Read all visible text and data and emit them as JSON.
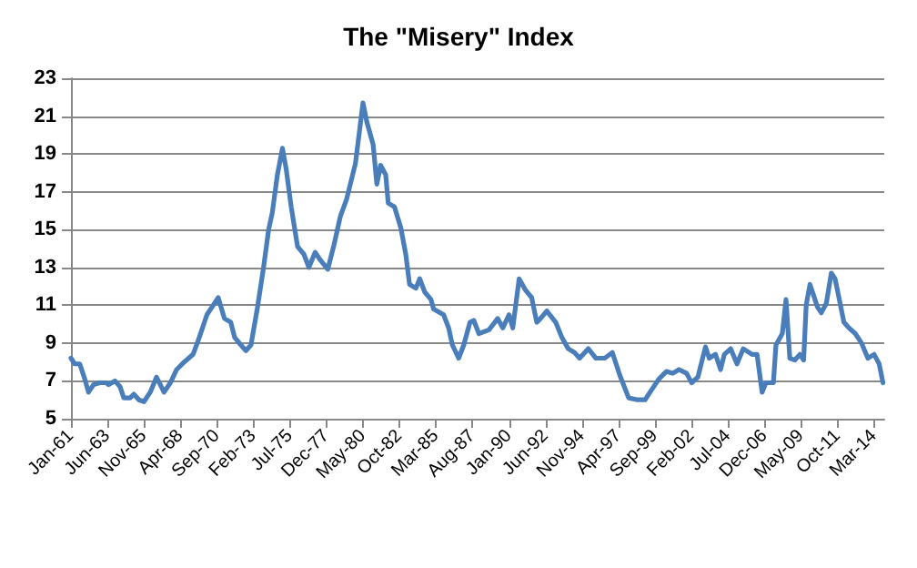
{
  "chart_data": {
    "type": "line",
    "title": "The \"Misery\" Index",
    "x": [
      "1961-01",
      "1961-04",
      "1961-08",
      "1961-12",
      "1962-03",
      "1962-07",
      "1962-12",
      "1963-05",
      "1963-07",
      "1963-12",
      "1964-04",
      "1964-07",
      "1964-12",
      "1965-03",
      "1965-07",
      "1965-11",
      "1966-04",
      "1966-09",
      "1966-12",
      "1967-03",
      "1967-08",
      "1968-01",
      "1968-07",
      "1969-02",
      "1969-07",
      "1970-01",
      "1970-06",
      "1970-10",
      "1971-03",
      "1971-08",
      "1971-11",
      "1972-04",
      "1972-08",
      "1972-12",
      "1973-05",
      "1973-10",
      "1974-02",
      "1974-05",
      "1974-09",
      "1975-01",
      "1975-04",
      "1975-08",
      "1976-01",
      "1976-06",
      "1976-10",
      "1977-03",
      "1977-07",
      "1978-01",
      "1978-06",
      "1978-11",
      "1979-04",
      "1979-11",
      "1980-05",
      "1980-08",
      "1981-01",
      "1981-04",
      "1981-07",
      "1981-11",
      "1982-01",
      "1982-06",
      "1982-11",
      "1983-03",
      "1983-06",
      "1983-11",
      "1984-02",
      "1984-06",
      "1984-11",
      "1985-01",
      "1985-09",
      "1986-01",
      "1986-04",
      "1986-09",
      "1987-01",
      "1987-06",
      "1987-09",
      "1988-01",
      "1988-09",
      "1989-04",
      "1989-08",
      "1990-01",
      "1990-04",
      "1990-09",
      "1991-02",
      "1991-07",
      "1991-11",
      "1992-02",
      "1992-07",
      "1993-02",
      "1993-07",
      "1993-12",
      "1994-05",
      "1994-09",
      "1995-04",
      "1995-10",
      "1996-05",
      "1996-11",
      "1997-05",
      "1997-12",
      "1998-07",
      "1999-01",
      "1999-05",
      "1999-12",
      "2000-06",
      "2000-11",
      "2001-04",
      "2001-10",
      "2002-02",
      "2002-07",
      "2003-01",
      "2003-04",
      "2003-09",
      "2004-01",
      "2004-04",
      "2004-09",
      "2005-02",
      "2005-07",
      "2006-02",
      "2006-06",
      "2006-10",
      "2007-01",
      "2007-07",
      "2007-09",
      "2008-02",
      "2008-05",
      "2008-08",
      "2008-12",
      "2009-04",
      "2009-07",
      "2009-09",
      "2009-12",
      "2010-06",
      "2010-09",
      "2011-01",
      "2011-05",
      "2011-08",
      "2012-03",
      "2012-07",
      "2012-12",
      "2013-05",
      "2013-10",
      "2014-03",
      "2014-07",
      "2014-10"
    ],
    "series": [
      {
        "color": "#4a7ebb",
        "values": [
          8.2,
          7.9,
          7.9,
          7.1,
          6.4,
          6.8,
          6.9,
          6.9,
          6.8,
          7.0,
          6.7,
          6.1,
          6.1,
          6.3,
          6.0,
          5.9,
          6.4,
          7.2,
          6.8,
          6.4,
          6.9,
          7.6,
          8.0,
          8.4,
          9.3,
          10.5,
          11.0,
          11.4,
          10.3,
          10.1,
          9.3,
          8.9,
          8.6,
          8.9,
          10.8,
          13.0,
          15.0,
          15.9,
          17.9,
          19.3,
          18.2,
          16.2,
          14.1,
          13.7,
          13.0,
          13.8,
          13.4,
          12.9,
          14.2,
          15.7,
          16.6,
          18.5,
          21.7,
          20.7,
          19.5,
          17.4,
          18.4,
          17.9,
          16.4,
          16.2,
          15.1,
          13.7,
          12.1,
          11.9,
          12.4,
          11.7,
          11.3,
          10.8,
          10.5,
          9.8,
          8.9,
          8.2,
          8.9,
          10.1,
          10.2,
          9.5,
          9.7,
          10.3,
          9.8,
          10.5,
          9.8,
          12.4,
          11.8,
          11.4,
          10.1,
          10.3,
          10.7,
          10.1,
          9.3,
          8.7,
          8.5,
          8.2,
          8.7,
          8.2,
          8.2,
          8.5,
          7.3,
          6.1,
          6.0,
          6.0,
          6.4,
          7.1,
          7.5,
          7.4,
          7.6,
          7.4,
          6.9,
          7.2,
          8.8,
          8.2,
          8.4,
          7.6,
          8.4,
          8.7,
          7.9,
          8.7,
          8.4,
          8.4,
          6.4,
          6.9,
          6.9,
          8.9,
          9.5,
          11.3,
          8.2,
          8.1,
          8.4,
          8.1,
          11.0,
          12.1,
          10.9,
          10.6,
          11.1,
          12.7,
          12.4,
          10.1,
          9.8,
          9.5,
          9.0,
          8.2,
          8.4,
          7.9,
          6.9
        ]
      }
    ],
    "xlim": [
      "1961-01",
      "2014-11"
    ],
    "xticks": [
      {
        "value": "1961-01",
        "label": "Jan-61"
      },
      {
        "value": "1963-06",
        "label": "Jun-63"
      },
      {
        "value": "1965-11",
        "label": "Nov-65"
      },
      {
        "value": "1968-04",
        "label": "Apr-68"
      },
      {
        "value": "1970-09",
        "label": "Sep-70"
      },
      {
        "value": "1973-02",
        "label": "Feb-73"
      },
      {
        "value": "1975-07",
        "label": "Jul-75"
      },
      {
        "value": "1977-12",
        "label": "Dec-77"
      },
      {
        "value": "1980-05",
        "label": "May-80"
      },
      {
        "value": "1982-10",
        "label": "Oct-82"
      },
      {
        "value": "1985-03",
        "label": "Mar-85"
      },
      {
        "value": "1987-08",
        "label": "Aug-87"
      },
      {
        "value": "1990-01",
        "label": "Jan-90"
      },
      {
        "value": "1992-06",
        "label": "Jun-92"
      },
      {
        "value": "1994-11",
        "label": "Nov-94"
      },
      {
        "value": "1997-04",
        "label": "Apr-97"
      },
      {
        "value": "1999-09",
        "label": "Sep-99"
      },
      {
        "value": "2002-02",
        "label": "Feb-02"
      },
      {
        "value": "2004-07",
        "label": "Jul-04"
      },
      {
        "value": "2006-12",
        "label": "Dec-06"
      },
      {
        "value": "2009-05",
        "label": "May-09"
      },
      {
        "value": "2011-10",
        "label": "Oct-11"
      },
      {
        "value": "2014-03",
        "label": "Mar-14"
      }
    ],
    "ylim": [
      5,
      23
    ],
    "yticks": [
      5,
      7,
      9,
      11,
      13,
      15,
      17,
      19,
      21,
      23
    ],
    "grid": "y",
    "marker": "none",
    "line_style": "solid"
  }
}
